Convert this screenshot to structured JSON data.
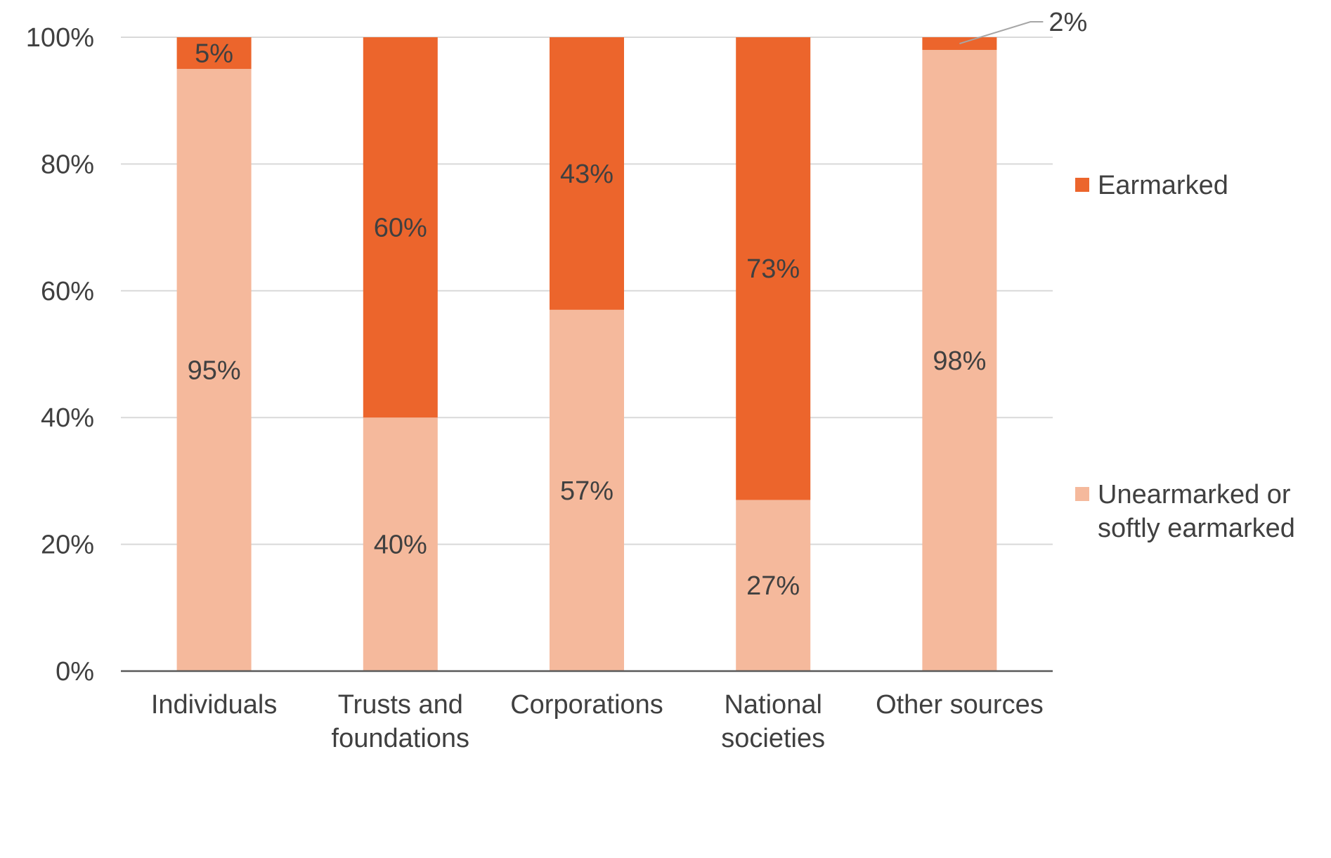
{
  "chart_data": {
    "type": "bar",
    "stacked": true,
    "categories": [
      [
        "Individuals"
      ],
      [
        "Trusts and",
        "foundations"
      ],
      [
        "Corporations"
      ],
      [
        "National",
        "societies"
      ],
      [
        "Other sources"
      ]
    ],
    "series": [
      {
        "name": "Unearmarked or softly earmarked",
        "legend_lines": [
          "Unearmarked or",
          "softly earmarked"
        ],
        "color": "#F5B99C",
        "values": [
          95,
          40,
          57,
          27,
          98
        ],
        "labels": [
          "95%",
          "40%",
          "57%",
          "27%",
          "98%"
        ]
      },
      {
        "name": "Earmarked",
        "legend_lines": [
          "Earmarked"
        ],
        "color": "#EC652C",
        "values": [
          5,
          60,
          43,
          73,
          2
        ],
        "labels": [
          "5%",
          "60%",
          "43%",
          "73%",
          "2%"
        ]
      }
    ],
    "ylim": [
      0,
      100
    ],
    "yticks": [
      "0%",
      "20%",
      "40%",
      "60%",
      "80%",
      "100%"
    ],
    "grid": true,
    "legend_position": "right",
    "text_color": "#404040",
    "axis_color": "#595959",
    "grid_color": "#D9D9D9",
    "leader_color": "#A6A6A6"
  }
}
